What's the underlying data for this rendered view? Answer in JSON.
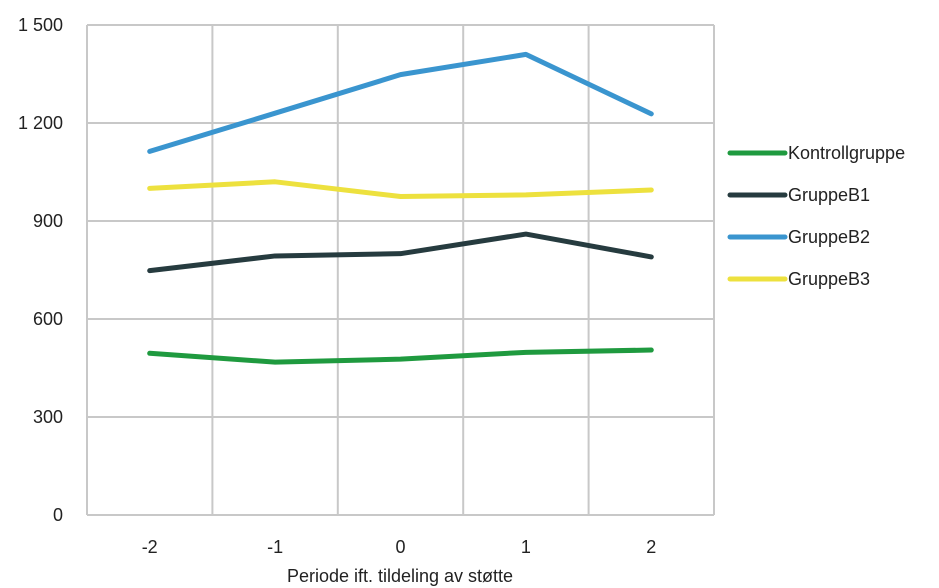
{
  "chart_data": {
    "type": "line",
    "title": "",
    "xlabel": "Periode ift. tildeling av støtte",
    "ylabel": "",
    "categories": [
      "-2",
      "-1",
      "0",
      "1",
      "2"
    ],
    "ylim": [
      0,
      1500
    ],
    "y_ticks": [
      0,
      300,
      600,
      900,
      1200,
      1500
    ],
    "y_tick_labels": [
      "0",
      "300",
      "600",
      "900",
      "1 200",
      "1 500"
    ],
    "grid": true,
    "legend_position": "right",
    "series": [
      {
        "name": "Kontrollgruppe",
        "color": "#1f9a3f",
        "values": [
          495,
          468,
          477,
          498,
          505
        ]
      },
      {
        "name": "GruppeB1",
        "color": "#263b3f",
        "values": [
          748,
          793,
          800,
          860,
          790
        ]
      },
      {
        "name": "GruppeB2",
        "color": "#3a95cf",
        "values": [
          1113,
          1230,
          1348,
          1410,
          1228
        ]
      },
      {
        "name": "GruppeB3",
        "color": "#ede13e",
        "values": [
          1000,
          1020,
          975,
          980,
          995
        ]
      }
    ]
  }
}
